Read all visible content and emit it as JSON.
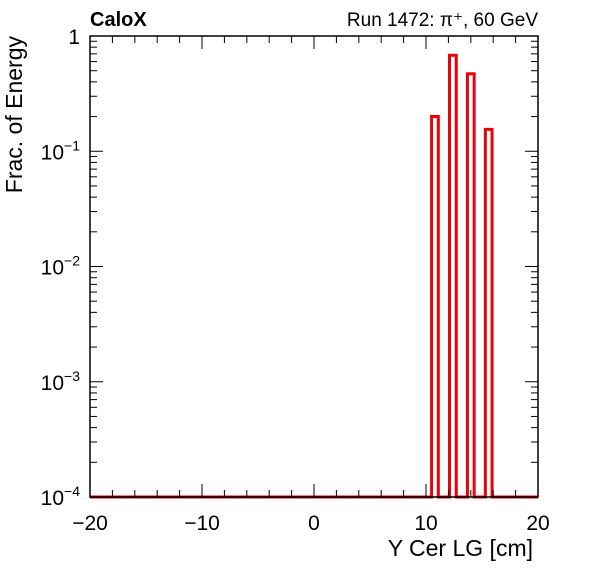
{
  "header": {
    "experiment": "CaloX",
    "run_info": "Run 1472:   π⁺, 60 GeV"
  },
  "chart_data": {
    "type": "histogram",
    "title": "",
    "xlabel": "Y Cer LG [cm]",
    "ylabel": "Frac. of Energy",
    "xlim": [
      -20,
      20
    ],
    "ylim": [
      0.0001,
      1
    ],
    "yscale": "log",
    "grid": false,
    "line_color": "#e8000b",
    "x_ticks": [
      {
        "value": -20,
        "label": "−20"
      },
      {
        "value": -10,
        "label": "−10"
      },
      {
        "value": 0,
        "label": "0"
      },
      {
        "value": 10,
        "label": "10"
      },
      {
        "value": 20,
        "label": "20"
      }
    ],
    "y_ticks": [
      {
        "value": 0.0001,
        "base": "10",
        "exp": "−4"
      },
      {
        "value": 0.001,
        "base": "10",
        "exp": "−3"
      },
      {
        "value": 0.01,
        "base": "10",
        "exp": "−2"
      },
      {
        "value": 0.1,
        "base": "10",
        "exp": "−1"
      },
      {
        "value": 1,
        "base": "1",
        "exp": ""
      }
    ],
    "bins": [
      {
        "x_low": 10.5,
        "x_high": 11.1,
        "value": 0.2
      },
      {
        "x_low": 12.1,
        "x_high": 12.7,
        "value": 0.68
      },
      {
        "x_low": 13.7,
        "x_high": 14.3,
        "value": 0.47
      },
      {
        "x_low": 15.3,
        "x_high": 15.9,
        "value": 0.155
      }
    ]
  }
}
